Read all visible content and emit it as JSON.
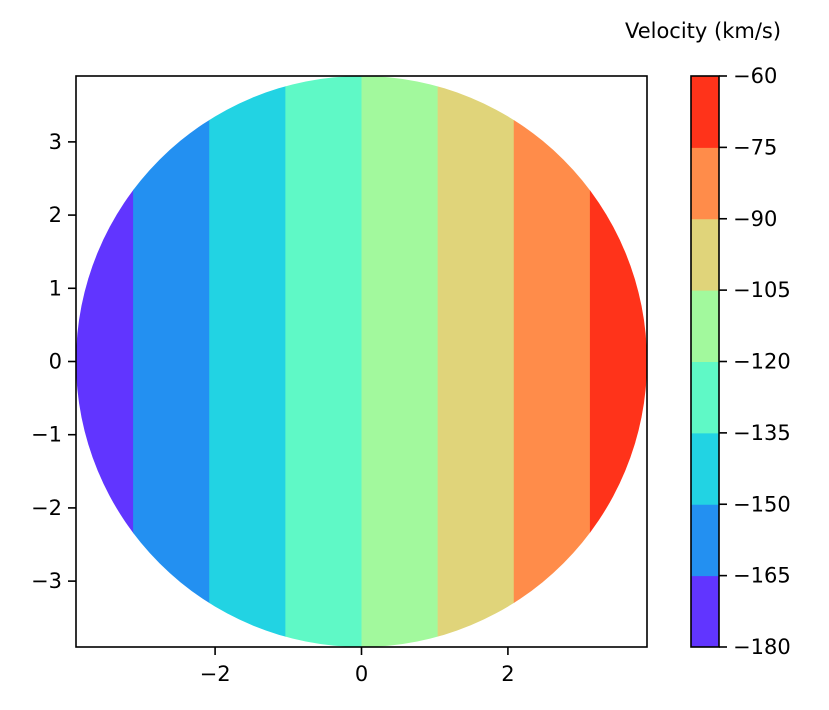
{
  "chart_data": {
    "type": "heatmap",
    "title": "",
    "xlabel": "",
    "ylabel": "",
    "xlim": [
      -3.9,
      3.9
    ],
    "ylim": [
      -3.9,
      3.9
    ],
    "grid": false,
    "disk_radius": 3.9,
    "x_ticks": [
      -2,
      0,
      2
    ],
    "x_tick_labels": [
      "−2",
      "0",
      "2"
    ],
    "y_ticks": [
      3,
      2,
      1,
      0,
      -1,
      -2,
      -3
    ],
    "y_tick_labels": [
      "3",
      "2",
      "1",
      "0",
      "−1",
      "−2",
      "−3"
    ],
    "bands": [
      {
        "x_from": -3.9,
        "x_to": -3.12,
        "velocity_range": [
          -180,
          -165
        ],
        "color": "#6135ff"
      },
      {
        "x_from": -3.12,
        "x_to": -2.08,
        "velocity_range": [
          -165,
          -150
        ],
        "color": "#2390f1"
      },
      {
        "x_from": -2.08,
        "x_to": -1.04,
        "velocity_range": [
          -150,
          -135
        ],
        "color": "#22d3e3"
      },
      {
        "x_from": -1.04,
        "x_to": 0.0,
        "velocity_range": [
          -135,
          -120
        ],
        "color": "#5ff9c6"
      },
      {
        "x_from": 0.0,
        "x_to": 1.04,
        "velocity_range": [
          -120,
          -105
        ],
        "color": "#a2f99d"
      },
      {
        "x_from": 1.04,
        "x_to": 2.08,
        "velocity_range": [
          -105,
          -90
        ],
        "color": "#e0d47a"
      },
      {
        "x_from": 2.08,
        "x_to": 3.12,
        "velocity_range": [
          -90,
          -75
        ],
        "color": "#ff8c4a"
      },
      {
        "x_from": 3.12,
        "x_to": 3.9,
        "velocity_range": [
          -75,
          -60
        ],
        "color": "#ff331a"
      }
    ],
    "colorbar": {
      "label": "Velocity (km/s)",
      "range": [
        -180,
        -60
      ],
      "levels": [
        -180,
        -165,
        -150,
        -135,
        -120,
        -105,
        -90,
        -75,
        -60
      ],
      "tick_labels": [
        "−180",
        "−165",
        "−150",
        "−135",
        "−120",
        "−105",
        "−90",
        "−75",
        "−60"
      ],
      "colors": [
        "#6135ff",
        "#2390f1",
        "#22d3e3",
        "#5ff9c6",
        "#a2f99d",
        "#e0d47a",
        "#ff8c4a",
        "#ff331a"
      ]
    }
  }
}
